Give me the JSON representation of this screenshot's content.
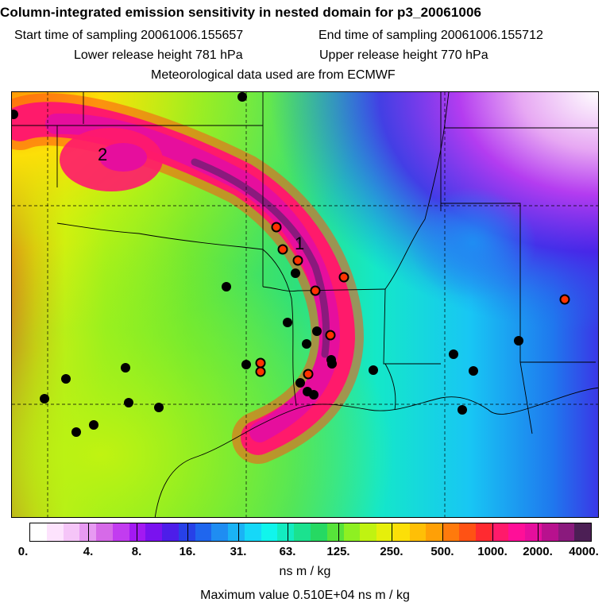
{
  "header": {
    "title": "Column-integrated emission sensitivity in nested domain for p3_20061006",
    "start_label": "Start time of sampling 20061006.155657",
    "end_label": "End time of sampling 20061006.155712",
    "lower_label": "Lower release height  781 hPa",
    "upper_label": "Upper release height  770 hPa",
    "met_label": "Meteorological data used are from ECMWF"
  },
  "map": {
    "markers": [
      {
        "label": "1",
        "kind": "plume-label"
      },
      {
        "label": "2",
        "kind": "plume-label"
      }
    ],
    "station_colors": {
      "black": "#000000",
      "red": "#ff3300"
    }
  },
  "colorbar": {
    "colors": [
      "#ffffff",
      "#fde3fd",
      "#f5c5f8",
      "#e79af2",
      "#d66ae8",
      "#c23cf0",
      "#a319f2",
      "#7a12ef",
      "#4d1de9",
      "#2741e8",
      "#1f66ee",
      "#1f8df2",
      "#1ab3f5",
      "#16d8f8",
      "#11f5ec",
      "#13ecc0",
      "#1be28f",
      "#26d962",
      "#57e33a",
      "#8ef022",
      "#c0f311",
      "#e6ef0b",
      "#fcdf08",
      "#ffbf06",
      "#ffa006",
      "#ff7a0c",
      "#ff5214",
      "#ff2a30",
      "#ff1a6b",
      "#ff0f98",
      "#e60e9d",
      "#b8118e",
      "#8a1a7d",
      "#4c1f55"
    ],
    "tick_labels": [
      "0.",
      "4.",
      "8.",
      "16.",
      "31.",
      "63.",
      "125.",
      "250.",
      "500.",
      "1000.",
      "2000.",
      "4000."
    ],
    "units": "ns m / kg",
    "max_value": "Maximum value  0.510E+04 ns m / kg"
  }
}
